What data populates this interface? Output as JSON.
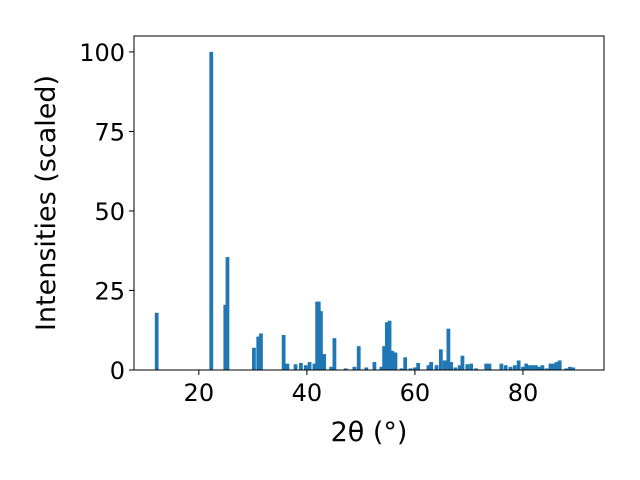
{
  "chart_data": {
    "type": "bar",
    "xlabel": "2θ (°)",
    "ylabel": "Intensities (scaled)",
    "xlim": [
      8,
      95
    ],
    "ylim": [
      0,
      105
    ],
    "grid": false,
    "bar_color": "#1f77b4",
    "bar_width": 0.7,
    "x_ticks": [
      20,
      40,
      60,
      80
    ],
    "y_ticks": [
      0,
      25,
      50,
      75,
      100
    ],
    "x_tick_labels": [
      "20",
      "40",
      "60",
      "80"
    ],
    "y_tick_labels": [
      "0",
      "25",
      "50",
      "75",
      "100"
    ],
    "x": [
      12.2,
      22.3,
      24.9,
      25.3,
      30.2,
      31.0,
      31.5,
      35.7,
      36.4,
      37.9,
      38.9,
      39.8,
      40.5,
      41.4,
      41.9,
      42.2,
      42.6,
      43.2,
      44.5,
      45.1,
      47.2,
      48.8,
      49.6,
      51.0,
      52.5,
      53.8,
      54.3,
      54.8,
      55.3,
      55.8,
      56.4,
      57.5,
      58.2,
      59.2,
      60.0,
      60.6,
      62.5,
      63.0,
      64.0,
      64.8,
      65.5,
      66.2,
      66.7,
      67.5,
      68.3,
      68.8,
      69.7,
      70.4,
      71.3,
      73.2,
      73.8,
      76.0,
      76.8,
      77.7,
      78.5,
      79.2,
      80.0,
      80.6,
      81.1,
      81.7,
      82.4,
      83.0,
      83.6,
      84.4,
      85.1,
      85.7,
      86.2,
      86.8,
      88.0,
      88.7,
      89.3
    ],
    "values": [
      18.0,
      100.0,
      20.5,
      35.5,
      7.0,
      10.5,
      11.5,
      11.0,
      2.0,
      1.8,
      2.2,
      1.5,
      2.5,
      2.0,
      21.5,
      21.5,
      18.5,
      5.0,
      1.0,
      10.0,
      0.5,
      1.0,
      7.5,
      0.8,
      2.5,
      1.0,
      7.5,
      15.0,
      15.5,
      6.0,
      5.5,
      0.5,
      4.0,
      0.5,
      0.8,
      2.2,
      1.5,
      2.5,
      1.5,
      6.5,
      3.0,
      13.0,
      2.5,
      0.8,
      1.5,
      4.5,
      1.8,
      2.0,
      0.5,
      2.0,
      2.0,
      2.0,
      1.5,
      1.0,
      1.5,
      3.0,
      1.0,
      2.0,
      1.5,
      1.5,
      1.5,
      1.0,
      1.5,
      0.5,
      2.0,
      2.0,
      2.5,
      3.0,
      0.5,
      1.0,
      0.8
    ]
  }
}
